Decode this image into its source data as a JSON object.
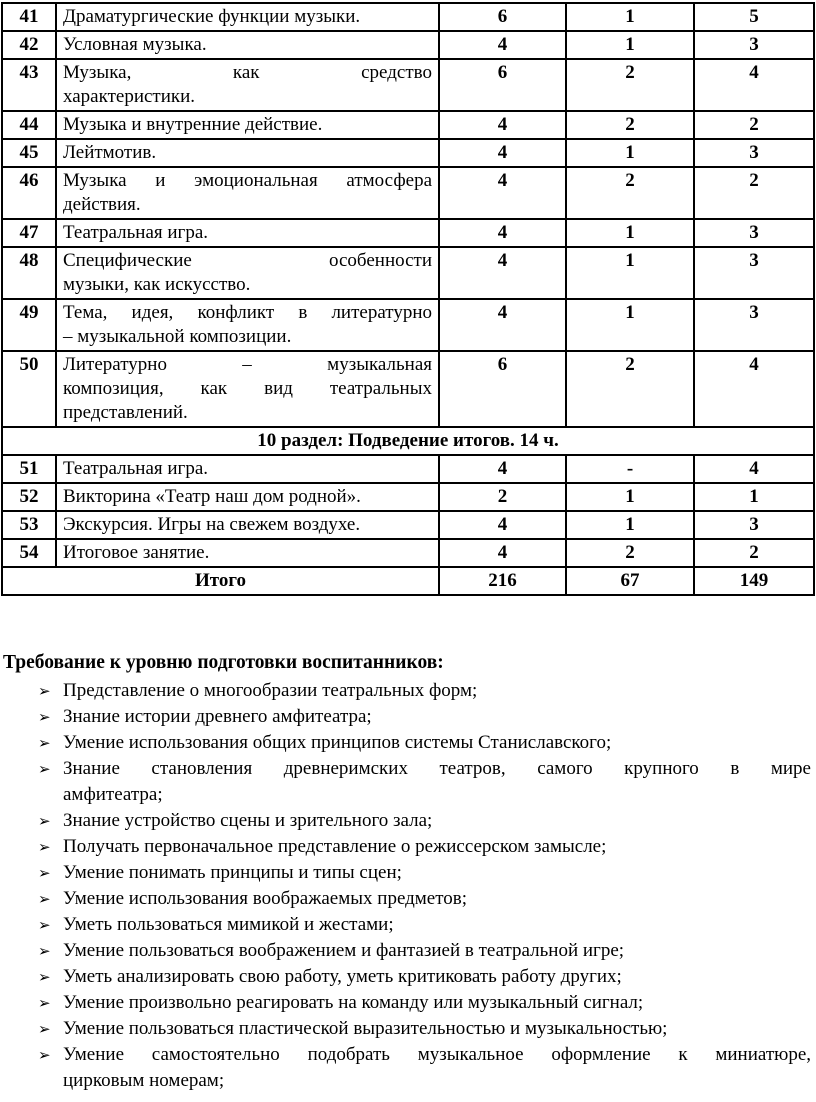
{
  "page": {
    "background": "#ffffff",
    "text_color": "#000000",
    "border_color": "#000000"
  },
  "table": {
    "rows": [
      {
        "num": "41",
        "topic": "Драматургические функции музыки.",
        "total": "6",
        "theory": "1",
        "practice": "5"
      },
      {
        "num": "42",
        "topic": "Условная музыка.",
        "total": "4",
        "theory": "1",
        "practice": "3"
      },
      {
        "num": "43",
        "topic": "Музыка, как средство\nхарактеристики.",
        "total": "6",
        "theory": "2",
        "practice": "4"
      },
      {
        "num": "44",
        "topic": "Музыка и внутренние действие.",
        "total": "4",
        "theory": "2",
        "practice": "2"
      },
      {
        "num": "45",
        "topic": "Лейтмотив.",
        "total": "4",
        "theory": "1",
        "practice": "3"
      },
      {
        "num": "46",
        "topic": "Музыка и эмоциональная атмосфера\nдействия.",
        "total": "4",
        "theory": "2",
        "practice": "2"
      },
      {
        "num": "47",
        "topic": "Театральная игра.",
        "total": "4",
        "theory": "1",
        "practice": "3"
      },
      {
        "num": "48",
        "topic": "Специфические особенности\nмузыки, как искусство.",
        "total": "4",
        "theory": "1",
        "practice": "3"
      },
      {
        "num": "49",
        "topic": "Тема, идея, конфликт в литературно\n– музыкальной композиции.",
        "total": "4",
        "theory": "1",
        "practice": "3"
      },
      {
        "num": "50",
        "topic": "Литературно – музыкальная\nкомпозиция, как вид театральных\nпредставлений.",
        "total": "6",
        "theory": "2",
        "practice": "4"
      },
      {
        "num": "51",
        "topic": "Театральная игра.",
        "total": "4",
        "theory": "-",
        "practice": "4"
      },
      {
        "num": "52",
        "topic": "Викторина «Театр наш дом родной».",
        "total": "2",
        "theory": "1",
        "practice": "1"
      },
      {
        "num": "53",
        "topic": "Экскурсия. Игры на свежем воздухе.",
        "total": "4",
        "theory": "1",
        "practice": "3"
      },
      {
        "num": "54",
        "topic": "Итоговое занятие.",
        "total": "4",
        "theory": "2",
        "practice": "2"
      }
    ],
    "section_row": {
      "label": "10 раздел: Подведение итогов. 14 ч."
    },
    "total_row": {
      "label": "Итого",
      "total": "216",
      "theory": "67",
      "practice": "149"
    }
  },
  "requirements": {
    "heading": "Требование к уровню подготовки воспитанников:",
    "bullet": "➢",
    "items": [
      "Представление о многообразии театральных форм;",
      "Знание истории древнего амфитеатра;",
      "Умение использования общих принципов системы Станиславского;",
      "Знание становления древнеримских театров, самого крупного в мире\nамфитеатра;",
      "Знание устройство сцены и зрительного зала;",
      "Получать первоначальное представление о режиссерском замысле;",
      "Умение понимать принципы и типы сцен;",
      "Умение использования воображаемых предметов;",
      "Уметь пользоваться мимикой и жестами;",
      "Умение пользоваться воображением и фантазией в театральной игре;",
      "Уметь анализировать свою работу, уметь критиковать работу других;",
      "Умение произвольно реагировать на команду или музыкальный сигнал;",
      "Умение пользоваться пластической выразительностью и музыкальностью;",
      "Умение самостоятельно подобрать музыкальное оформление к миниатюре,\nцирковым номерам;"
    ]
  }
}
